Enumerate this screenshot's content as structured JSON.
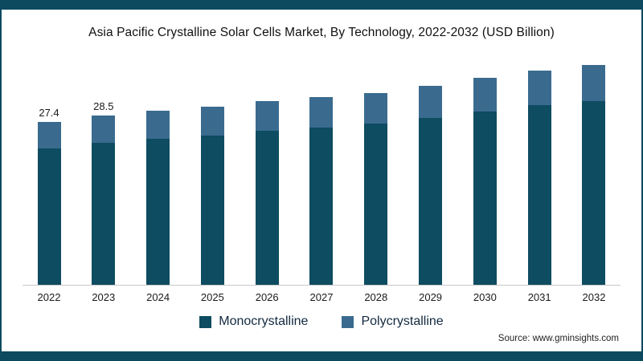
{
  "title": "Asia Pacific Crystalline Solar Cells Market, By Technology, 2022-2032 (USD Billion)",
  "source": "Source: www.gminsights.com",
  "legend": {
    "mono": "Monocrystalline",
    "poly": "Polycrystalline"
  },
  "chart_data": {
    "type": "bar",
    "stacked": true,
    "title": "Asia Pacific Crystalline Solar Cells Market, By Technology, 2022-2032 (USD Billion)",
    "xlabel": "",
    "ylabel": "",
    "grid": false,
    "legend_position": "bottom",
    "categories": [
      "2022",
      "2023",
      "2024",
      "2025",
      "2026",
      "2027",
      "2028",
      "2029",
      "2030",
      "2031",
      "2032"
    ],
    "series": [
      {
        "name": "Monocrystalline",
        "values": [
          23.0,
          23.9,
          24.6,
          25.2,
          26.0,
          26.5,
          27.1,
          28.1,
          29.2,
          30.3,
          31.0
        ]
      },
      {
        "name": "Polycrystalline",
        "values": [
          4.4,
          4.6,
          4.7,
          4.8,
          4.9,
          5.1,
          5.2,
          5.4,
          5.6,
          5.8,
          6.0
        ]
      }
    ],
    "totals": [
      27.4,
      28.5,
      29.3,
      30.0,
      30.9,
      31.6,
      32.3,
      33.5,
      34.8,
      36.1,
      37.0
    ],
    "data_labels": [
      "27.4",
      "28.5",
      "",
      "",
      "",
      "",
      "",
      "",
      "",
      "",
      ""
    ],
    "colors": {
      "mono": "#0e4c61",
      "poly": "#3a6b8f",
      "frame": "#0d4a5f",
      "axis_line": "#c8c8c8"
    }
  }
}
